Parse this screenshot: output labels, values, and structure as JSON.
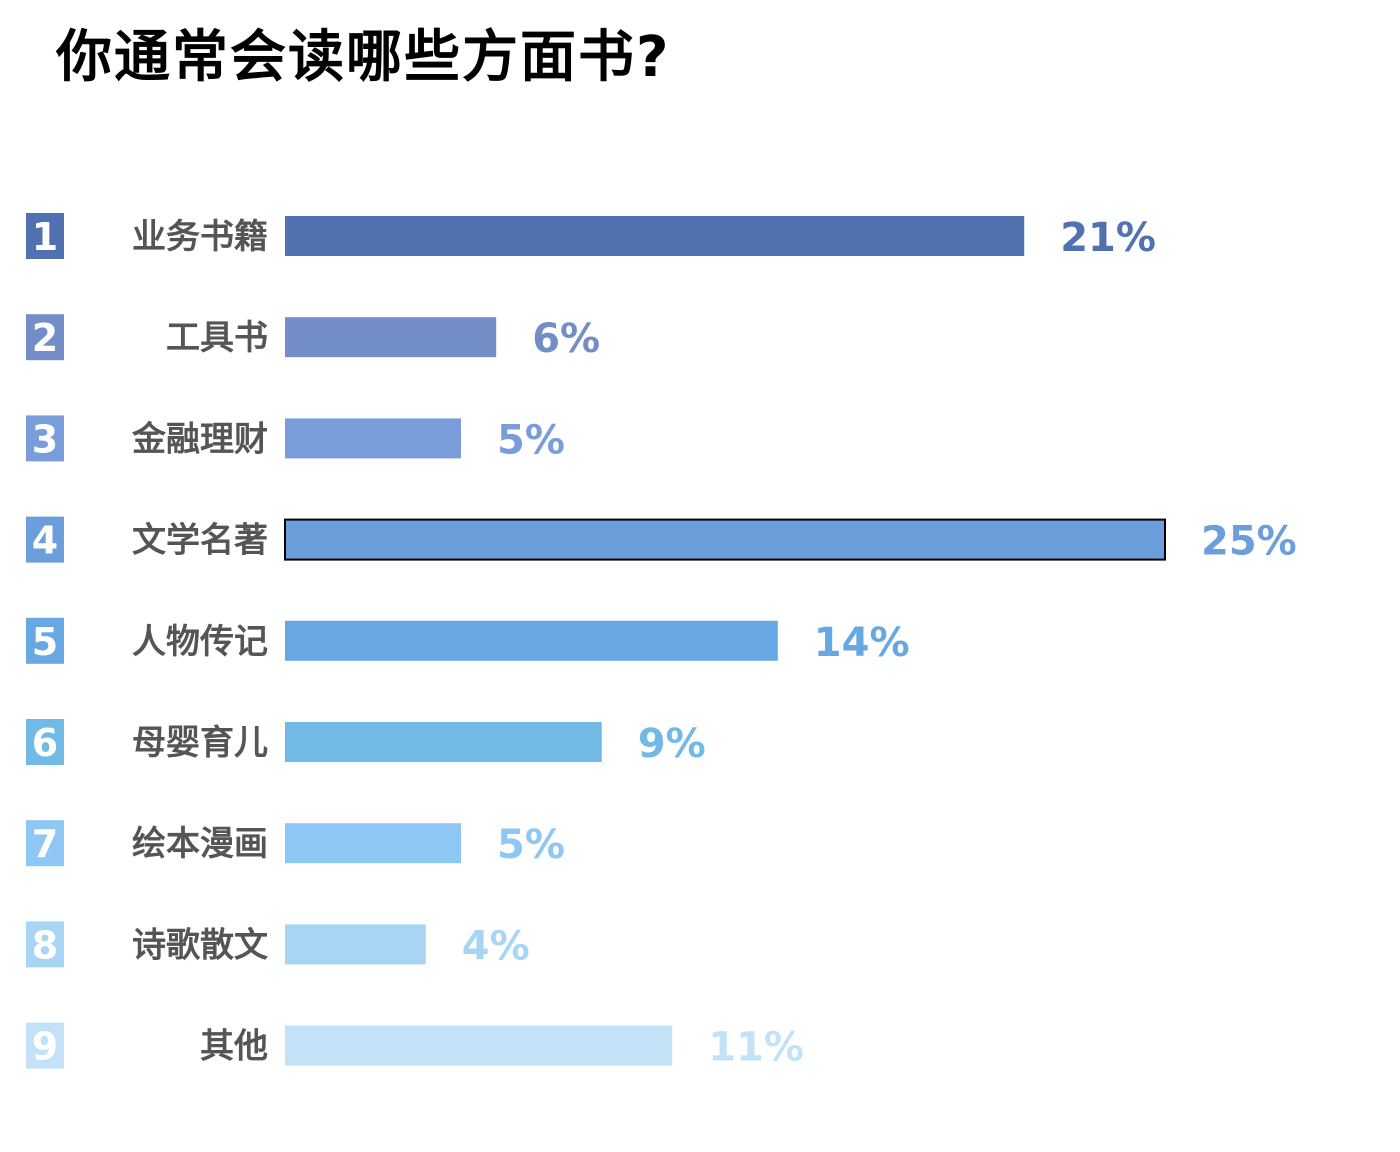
{
  "chart_data": {
    "type": "bar",
    "orientation": "horizontal",
    "title": "你通常会读哪些方面书?",
    "xlabel": "",
    "ylabel": "",
    "xlim": [
      0,
      25
    ],
    "grid": false,
    "legend": "none",
    "categories": [
      "业务书籍",
      "工具书",
      "金融理财",
      "文学名著",
      "人物传记",
      "母婴育儿",
      "绘本漫画",
      "诗歌散文",
      "其他"
    ],
    "ranks": [
      "1",
      "2",
      "3",
      "4",
      "5",
      "6",
      "7",
      "8",
      "9"
    ],
    "values": [
      21,
      6,
      5,
      25,
      14,
      9,
      5,
      4,
      11
    ],
    "value_labels": [
      "21%",
      "6%",
      "5%",
      "25%",
      "14%",
      "9%",
      "5%",
      "4%",
      "11%"
    ],
    "colors": [
      "#5171b0",
      "#738dc6",
      "#789dda",
      "#6c9edb",
      "#67a8e3",
      "#72bae6",
      "#8ec7f3",
      "#a8d5f3",
      "#c4e2f7"
    ],
    "highlighted_index": 3
  }
}
